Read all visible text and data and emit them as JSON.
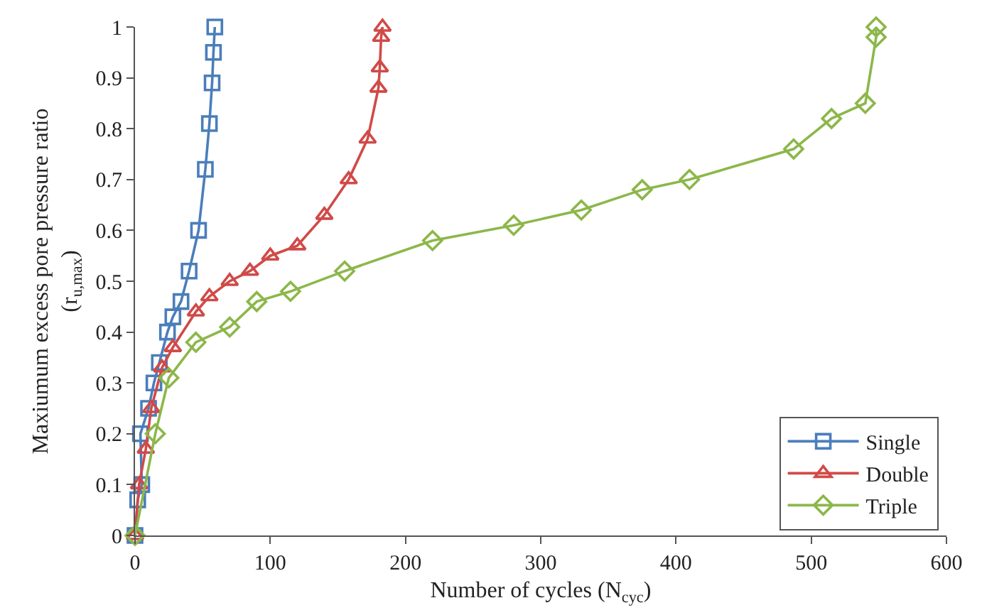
{
  "chart_data": {
    "type": "line",
    "xlabel": "Number of cycles (N$_{cyc}$)",
    "ylabel": "Maxiumum excess pore pressure ratio (r$_{u,max}$)",
    "xlim": [
      0,
      600
    ],
    "xticks": [
      0,
      100,
      200,
      300,
      400,
      500,
      600
    ],
    "ylim": [
      0,
      1
    ],
    "yticks": [
      0,
      0.1,
      0.2,
      0.3,
      0.4,
      0.5,
      0.6,
      0.7,
      0.8,
      0.9,
      1
    ],
    "grid": false,
    "legend": "bottom right",
    "line_style": "solid",
    "series": [
      {
        "name": "Single",
        "color": "#4a7ebb",
        "marker": "square",
        "x": [
          0,
          2,
          5,
          4,
          10,
          14,
          18,
          24,
          28,
          34,
          40,
          47,
          52,
          55,
          57,
          58,
          59
        ],
        "values": [
          0,
          0.07,
          0.1,
          0.2,
          0.25,
          0.3,
          0.34,
          0.4,
          0.43,
          0.46,
          0.52,
          0.6,
          0.72,
          0.81,
          0.89,
          0.95,
          1
        ]
      },
      {
        "name": "Double",
        "color": "#d04a48",
        "marker": "triangle",
        "x": [
          0,
          3,
          8,
          12,
          20,
          28,
          45,
          55,
          70,
          85,
          100,
          120,
          140,
          158,
          172,
          180,
          181,
          182,
          183
        ],
        "values": [
          0,
          0.1,
          0.17,
          0.25,
          0.33,
          0.37,
          0.44,
          0.47,
          0.5,
          0.52,
          0.55,
          0.57,
          0.63,
          0.7,
          0.78,
          0.88,
          0.92,
          0.98,
          1
        ]
      },
      {
        "name": "Triple",
        "color": "#8cb74a",
        "marker": "diamond",
        "x": [
          0,
          15,
          25,
          45,
          70,
          90,
          115,
          155,
          220,
          280,
          330,
          375,
          410,
          487,
          515,
          540,
          548,
          548
        ],
        "values": [
          0,
          0.2,
          0.31,
          0.38,
          0.41,
          0.46,
          0.48,
          0.52,
          0.58,
          0.61,
          0.64,
          0.68,
          0.7,
          0.76,
          0.82,
          0.85,
          0.98,
          1
        ]
      }
    ]
  }
}
